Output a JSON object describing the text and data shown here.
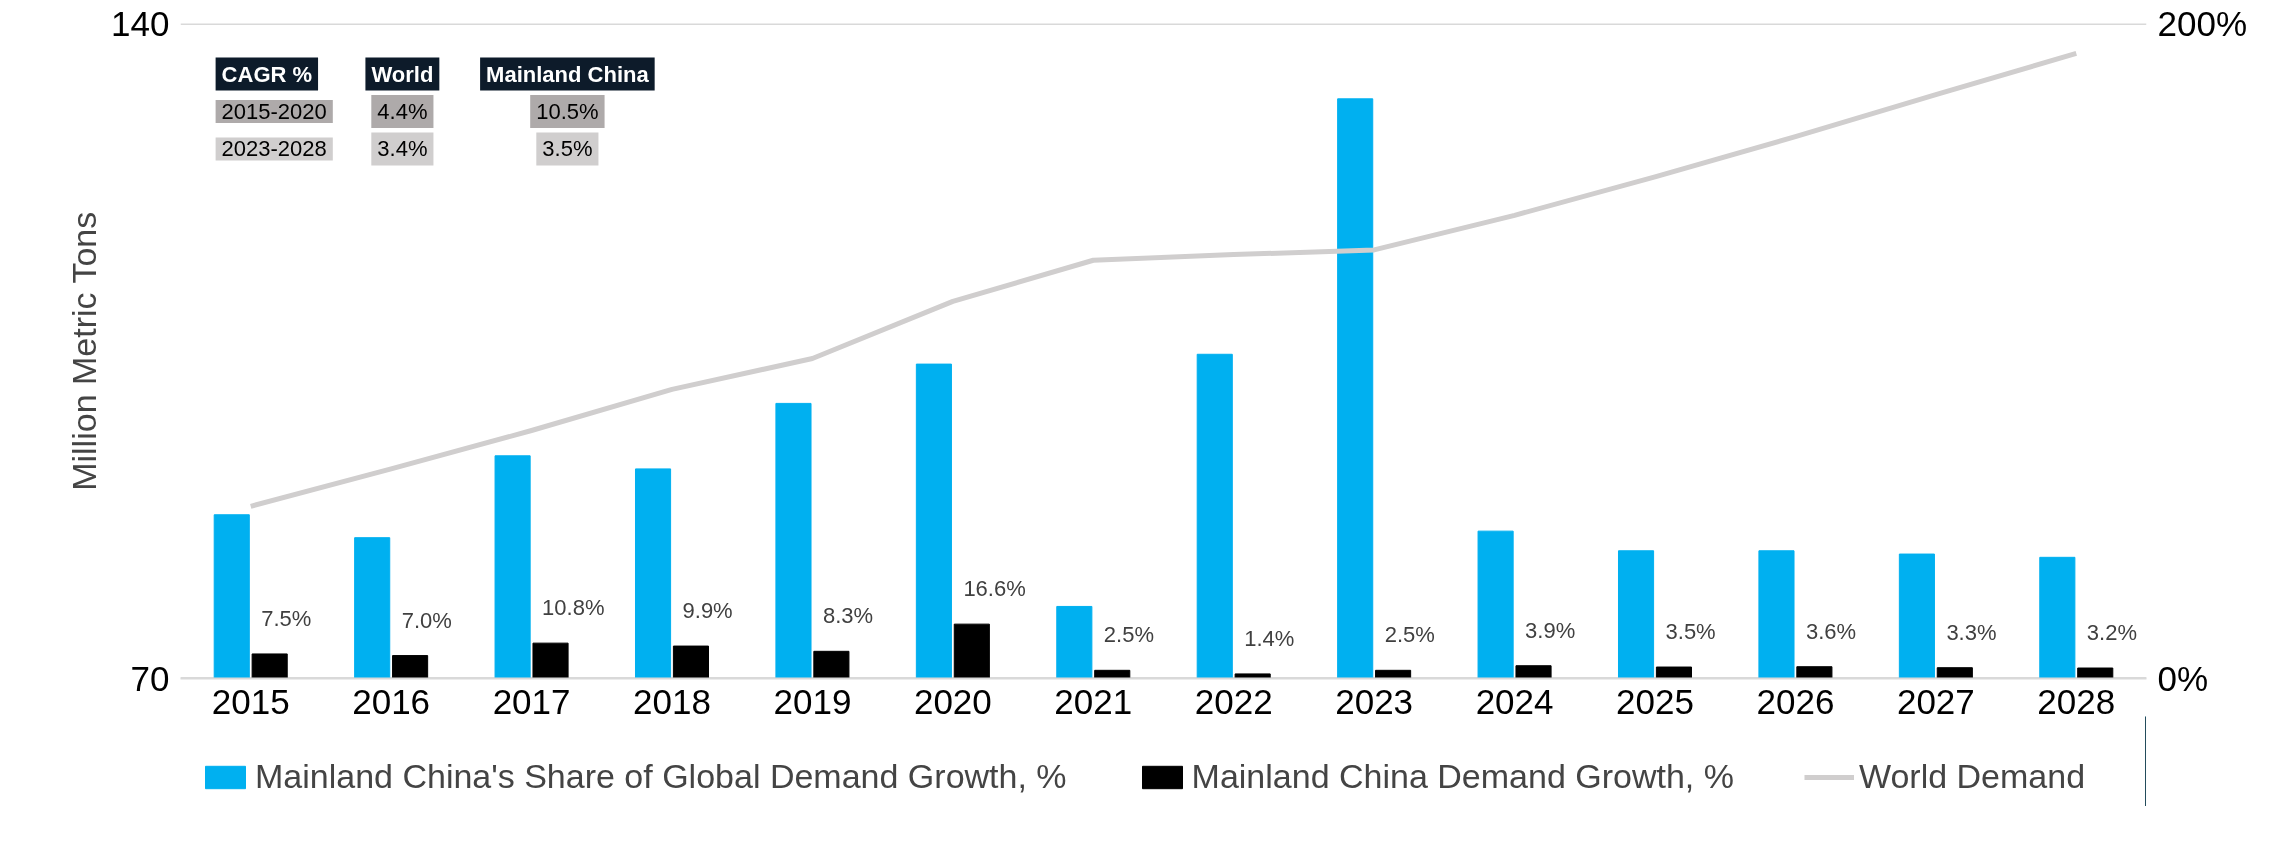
{
  "chart_data": {
    "type": "bar",
    "ylabel": "Million Metric Tons",
    "categories": [
      "2015",
      "2016",
      "2017",
      "2018",
      "2019",
      "2020",
      "2021",
      "2022",
      "2023",
      "2024",
      "2025",
      "2026",
      "2027",
      "2028"
    ],
    "series": [
      {
        "name": "Mainland China's Share of Global Demand Growth, %",
        "color": "#00b0f0",
        "axis": "y2",
        "values": [
          50,
          43,
          68,
          64,
          84,
          96,
          22,
          99,
          177,
          45,
          39,
          39,
          38,
          37
        ]
      },
      {
        "name": "Mainland China Demand Growth, %",
        "color": "#000000",
        "axis": "y2",
        "values": [
          7.5,
          7.0,
          10.8,
          9.9,
          8.3,
          16.6,
          2.5,
          1.4,
          2.5,
          3.9,
          3.5,
          3.6,
          3.3,
          3.2
        ],
        "data_labels": true,
        "value_labels": [
          "7.5%",
          "7.0%",
          "10.8%",
          "9.9%",
          "8.3%",
          "16.6%",
          "2.5%",
          "1.4%",
          "2.5%",
          "3.9%",
          "3.5%",
          "3.6%",
          "3.3%",
          "3.2%"
        ]
      },
      {
        "name": "World Demand",
        "color": "#d0cece",
        "type": "line",
        "values": [
          88.4,
          92.4,
          96.5,
          100.9,
          104.2,
          110.3,
          114.7,
          115.3,
          115.8,
          119.5,
          123.6,
          127.9,
          132.4,
          136.8
        ]
      }
    ],
    "ylim": [
      70,
      140
    ],
    "yticks": [
      70,
      140
    ],
    "y2lim": [
      0,
      200
    ],
    "y2ticks": [
      {
        "value": 0,
        "label": "0%"
      },
      {
        "value": 200,
        "label": "200%"
      }
    ],
    "grid": "y",
    "legend": "bottom",
    "annotations": [
      "CAGR %",
      "World",
      "Mainland China",
      "2015-2020",
      "4.4%",
      "10.5%",
      "2023-2028",
      "3.4%",
      "3.5%"
    ]
  }
}
